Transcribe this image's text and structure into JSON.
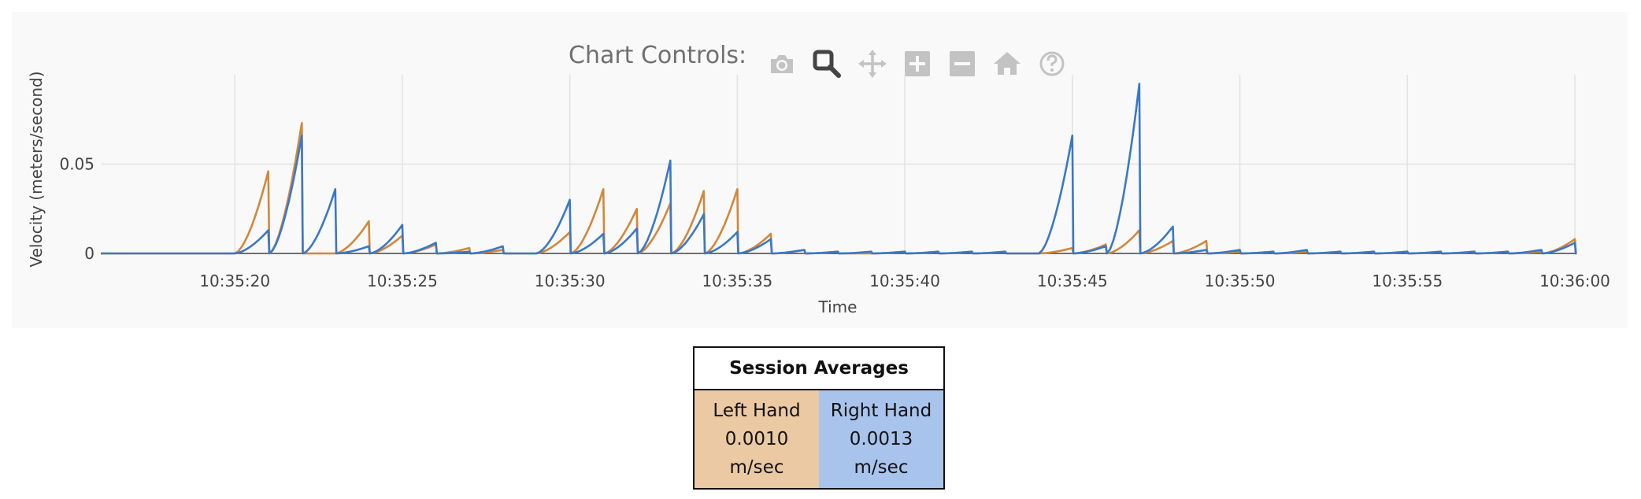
{
  "controls": {
    "label": "Chart Controls:",
    "icons": [
      "camera-icon",
      "zoom-icon",
      "pan-icon",
      "zoom-in-icon",
      "zoom-out-icon",
      "home-icon",
      "help-icon"
    ]
  },
  "colors": {
    "left": "#d2873a",
    "right": "#3a78c8",
    "left_bg": "#ebc9a3",
    "right_bg": "#a9c4ec"
  },
  "chart_data": {
    "type": "line",
    "xlabel": "Time",
    "ylabel": "Velocity (meters/second)",
    "x_ticks": [
      "10:35:20",
      "10:35:25",
      "10:35:30",
      "10:35:35",
      "10:35:40",
      "10:35:45",
      "10:35:50",
      "10:35:55",
      "10:36:00"
    ],
    "y_ticks": [
      "0",
      "0.05"
    ],
    "xlim": [
      "10:35:16",
      "10:36:00"
    ],
    "ylim": [
      0,
      0.1
    ],
    "grid": true,
    "legend": "none",
    "series": [
      {
        "color": "#d2873a",
        "peaks": [
          [
            21.0,
            0.046
          ],
          [
            22.0,
            0.073
          ],
          [
            24.0,
            0.018
          ],
          [
            25.0,
            0.01
          ],
          [
            26.0,
            0.005
          ],
          [
            27.0,
            0.003
          ],
          [
            28.0,
            0.002
          ],
          [
            30.0,
            0.012
          ],
          [
            31.0,
            0.036
          ],
          [
            32.0,
            0.025
          ],
          [
            33.0,
            0.028
          ],
          [
            34.0,
            0.035
          ],
          [
            35.0,
            0.036
          ],
          [
            36.0,
            0.011
          ],
          [
            37.0,
            0.002
          ],
          [
            38.0,
            0.001
          ],
          [
            40.0,
            0.001
          ],
          [
            41.0,
            0.001
          ],
          [
            42.0,
            0.001
          ],
          [
            43.0,
            0.001
          ],
          [
            45.0,
            0.003
          ],
          [
            46.0,
            0.005
          ],
          [
            47.0,
            0.013
          ],
          [
            48.0,
            0.007
          ],
          [
            49.0,
            0.007
          ],
          [
            50.0,
            0.001
          ],
          [
            51.0,
            0.001
          ],
          [
            52.0,
            0.001
          ],
          [
            53.0,
            0.001
          ],
          [
            54.0,
            0.001
          ],
          [
            55.0,
            0.001
          ],
          [
            56.0,
            0.001
          ],
          [
            57.0,
            0.001
          ],
          [
            58.0,
            0.001
          ],
          [
            59.0,
            0.001
          ],
          [
            60.0,
            0.008
          ]
        ]
      },
      {
        "color": "#3a78c8",
        "peaks": [
          [
            21.0,
            0.013
          ],
          [
            22.0,
            0.066
          ],
          [
            23.0,
            0.036
          ],
          [
            24.0,
            0.004
          ],
          [
            25.0,
            0.016
          ],
          [
            26.0,
            0.006
          ],
          [
            27.0,
            0.001
          ],
          [
            28.0,
            0.004
          ],
          [
            30.0,
            0.03
          ],
          [
            31.0,
            0.011
          ],
          [
            32.0,
            0.014
          ],
          [
            33.0,
            0.052
          ],
          [
            34.0,
            0.022
          ],
          [
            35.0,
            0.012
          ],
          [
            36.0,
            0.008
          ],
          [
            37.0,
            0.002
          ],
          [
            38.0,
            0.001
          ],
          [
            39.0,
            0.001
          ],
          [
            40.0,
            0.001
          ],
          [
            41.0,
            0.001
          ],
          [
            42.0,
            0.001
          ],
          [
            43.0,
            0.001
          ],
          [
            45.0,
            0.066
          ],
          [
            46.0,
            0.004
          ],
          [
            47.0,
            0.095
          ],
          [
            48.0,
            0.015
          ],
          [
            49.0,
            0.002
          ],
          [
            50.0,
            0.002
          ],
          [
            51.0,
            0.001
          ],
          [
            52.0,
            0.002
          ],
          [
            53.0,
            0.001
          ],
          [
            54.0,
            0.001
          ],
          [
            55.0,
            0.001
          ],
          [
            56.0,
            0.001
          ],
          [
            57.0,
            0.001
          ],
          [
            58.0,
            0.001
          ],
          [
            59.0,
            0.002
          ],
          [
            60.0,
            0.006
          ]
        ]
      }
    ]
  },
  "summary": {
    "title": "Session Averages",
    "left": {
      "label": "Left Hand",
      "value": "0.0010",
      "unit": "m/sec"
    },
    "right": {
      "label": "Right Hand",
      "value": "0.0013",
      "unit": "m/sec"
    }
  }
}
